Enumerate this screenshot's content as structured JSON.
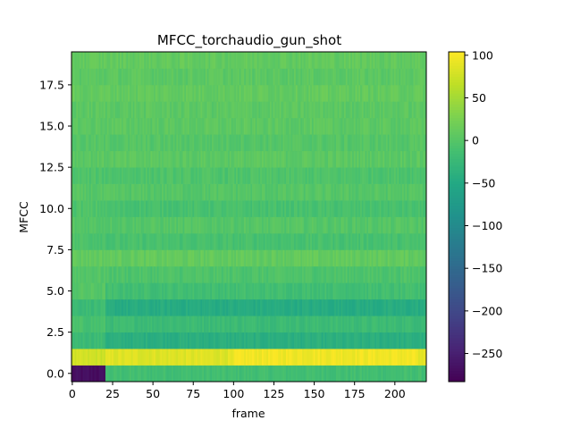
{
  "chart_data": {
    "type": "heatmap",
    "title": "MFCC_torchaudio_gun_shot",
    "xlabel": "frame",
    "ylabel": "MFCC",
    "xlim": [
      -0.5,
      219.5
    ],
    "ylim": [
      -0.5,
      19.5
    ],
    "x_ticks": [
      0,
      25,
      50,
      75,
      100,
      125,
      150,
      175,
      200
    ],
    "x_tick_labels": [
      "0",
      "25",
      "50",
      "75",
      "100",
      "125",
      "150",
      "175",
      "200"
    ],
    "y_ticks": [
      0.0,
      2.5,
      5.0,
      7.5,
      10.0,
      12.5,
      15.0,
      17.5
    ],
    "y_tick_labels": [
      "0.0",
      "2.5",
      "5.0",
      "7.5",
      "10.0",
      "12.5",
      "15.0",
      "17.5"
    ],
    "n_frames": 220,
    "n_coeffs": 20,
    "colormap": "viridis",
    "color_range": [
      -283,
      104
    ],
    "colorbar_ticks": [
      100,
      50,
      0,
      -50,
      -100,
      -150,
      -200,
      -250
    ],
    "colorbar_tick_labels": [
      "100",
      "50",
      "0",
      "−50",
      "−100",
      "−150",
      "−200",
      "−250"
    ],
    "grid": false,
    "legend": "none",
    "coefficient_profile": {
      "coeff": [
        0,
        1,
        2,
        3,
        4,
        5,
        6,
        7,
        8,
        9,
        10,
        11,
        12,
        13,
        14,
        15,
        16,
        17,
        18,
        19
      ],
      "mean_after_frame_21": [
        -15,
        85,
        -40,
        -20,
        -45,
        -15,
        -5,
        10,
        -10,
        0,
        -10,
        0,
        -5,
        5,
        0,
        5,
        5,
        10,
        5,
        10
      ],
      "mean_frames_0_to_20": [
        -270,
        75,
        -20,
        -10,
        -20,
        0,
        0,
        10,
        -5,
        0,
        -5,
        0,
        -5,
        5,
        0,
        5,
        5,
        10,
        5,
        10
      ]
    },
    "transition_frame": 21
  }
}
